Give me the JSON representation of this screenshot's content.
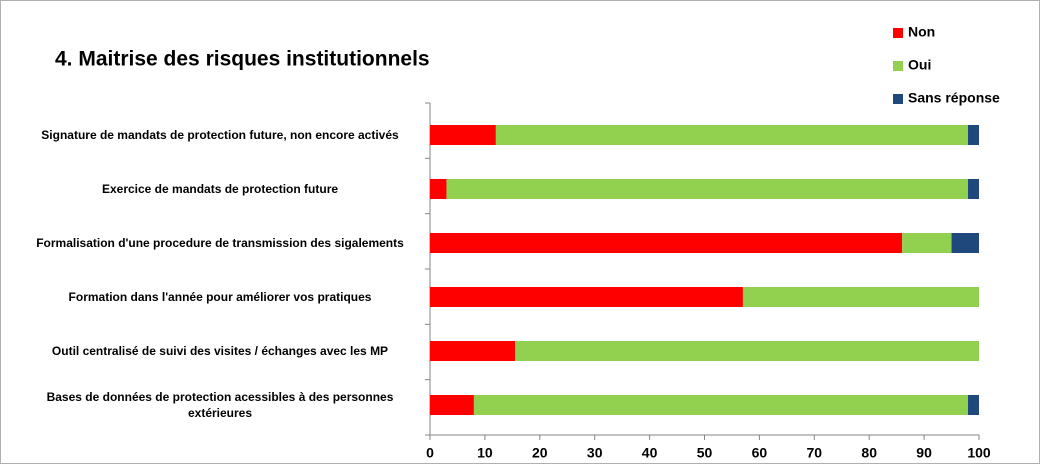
{
  "chart_data": {
    "type": "stacked_bar_horizontal",
    "title": "4. Maitrise des risques institutionnels",
    "categories": [
      "Signature de mandats de protection future, non encore activés",
      "Exercice de mandats de protection future",
      "Formalisation d'une procedure de transmission des sigalements",
      "Formation dans l'année pour améliorer  vos pratiques",
      "Outil centralisé de suivi des visites / échanges avec les MP",
      "Bases de données de protection acessibles à des personnes extérieures"
    ],
    "series": [
      {
        "name": "Non",
        "color": "#ff0000",
        "values": [
          12,
          3,
          86,
          57,
          15.5,
          8
        ]
      },
      {
        "name": "Oui",
        "color": "#92d050",
        "values": [
          86,
          95,
          9,
          43,
          84.5,
          90
        ]
      },
      {
        "name": "Sans réponse",
        "color": "#1f497d",
        "values": [
          2,
          2,
          5,
          0,
          0,
          2
        ]
      }
    ],
    "xlim": [
      0,
      100
    ],
    "xticks": [
      0,
      10,
      20,
      30,
      40,
      50,
      60,
      70,
      80,
      90,
      100
    ],
    "legend": "top-right"
  }
}
